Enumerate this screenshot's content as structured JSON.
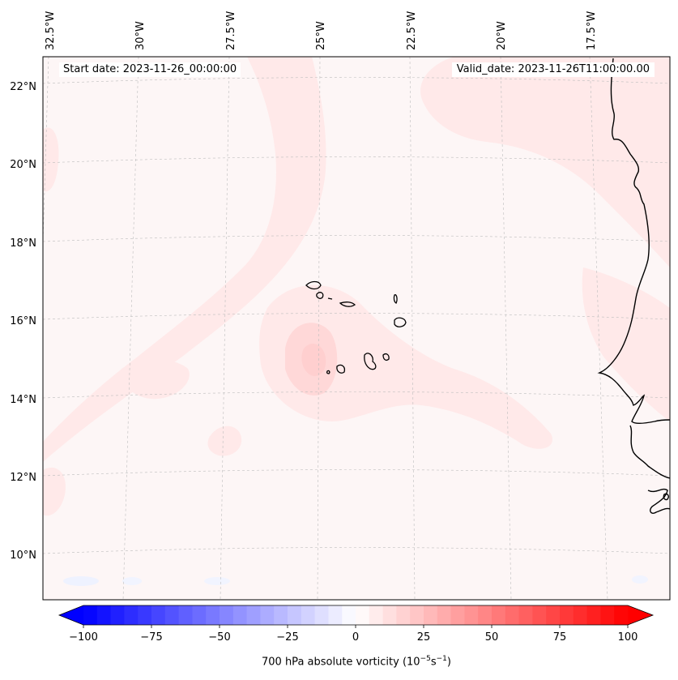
{
  "map": {
    "start_date": "Start date: 2023-11-26_00:00:00",
    "valid_date": "Valid_date: 2023-11-26T11:00:00.00",
    "lon_labels": [
      "32.5°W",
      "30°W",
      "27.5°W",
      "25°W",
      "22.5°W",
      "20°W",
      "17.5°W"
    ],
    "lat_labels": [
      "22°N",
      "20°N",
      "18°N",
      "16°N",
      "14°N",
      "12°N",
      "10°N"
    ],
    "gridlines": true,
    "field_colors": {
      "background": "#fdf6f6",
      "weak_positive": "#ffe8e8",
      "moderate_positive": "#ffd6d6",
      "slight_negative": "#eef2ff",
      "coastline": "#000000"
    }
  },
  "colorbar": {
    "label_prefix": "700 hPa absolute vorticity (10",
    "label_exp1": "−5",
    "label_mid": "s",
    "label_exp2": "−1",
    "label_suffix": ")",
    "tick_labels": [
      "−100",
      "−75",
      "−50",
      "−25",
      "0",
      "25",
      "50",
      "75",
      "100"
    ],
    "range": [
      -100,
      100
    ],
    "step": 5,
    "extend": "both",
    "cmap": [
      "#0000ff",
      "#ffffff",
      "#ff0000"
    ]
  }
}
